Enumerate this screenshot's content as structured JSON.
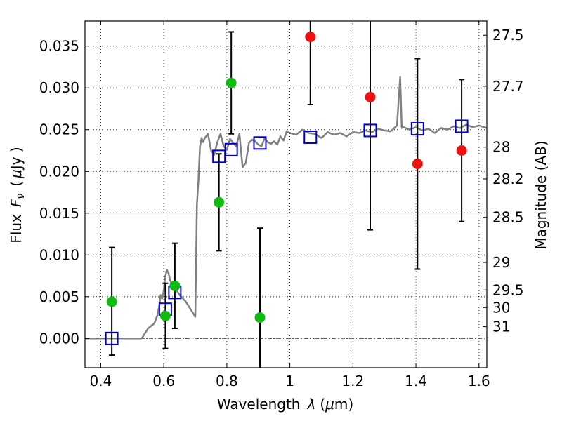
{
  "chart_data": {
    "type": "scatter",
    "title": "",
    "xlabel_text": "Wavelength",
    "xlabel_symbol": "λ",
    "xlabel_unit_open": "(",
    "xlabel_unit_mu": "μ",
    "xlabel_unit_rest": "m)",
    "ylabel_text": "Flux",
    "ylabel_symbol": "F",
    "ylabel_sub": "ν",
    "ylabel_unit_open": "(",
    "ylabel_unit_mu": "μ",
    "ylabel_unit_rest": "Jy )",
    "y2label": "Magnitude (AB)",
    "xlim": [
      0.35,
      1.625
    ],
    "ylim": [
      -0.0035,
      0.038
    ],
    "grid": true,
    "x_ticks": [
      0.4,
      0.6,
      0.8,
      1.0,
      1.2,
      1.4,
      1.6
    ],
    "x_tick_labels": [
      "0.4",
      "0.6",
      "0.8",
      "1",
      "1.2",
      "1.4",
      "1.6"
    ],
    "y_ticks": [
      0.0,
      0.005,
      0.01,
      0.015,
      0.02,
      0.025,
      0.03,
      0.035
    ],
    "y_tick_labels": [
      "0.000",
      "0.005",
      "0.010",
      "0.015",
      "0.020",
      "0.025",
      "0.030",
      "0.035"
    ],
    "mag_ticks": [
      {
        "label": "27.5",
        "flux": 0.0363
      },
      {
        "label": "27.7",
        "flux": 0.0302
      },
      {
        "label": "28",
        "flux": 0.0229
      },
      {
        "label": "28.2",
        "flux": 0.0191
      },
      {
        "label": "28.5",
        "flux": 0.0145
      },
      {
        "label": "29",
        "flux": 0.0091
      },
      {
        "label": "29.5",
        "flux": 0.0058
      },
      {
        "label": "30",
        "flux": 0.0037
      },
      {
        "label": "31",
        "flux": 0.0014
      }
    ],
    "colors": {
      "model": "#808080",
      "green": "#11bb11",
      "red": "#ee1111",
      "box": "#0000cc",
      "errorbar": "#000000"
    },
    "observed_green": [
      {
        "x": 0.435,
        "y": 0.0044,
        "err_lo": 0.0064,
        "err_hi": 0.0065
      },
      {
        "x": 0.605,
        "y": 0.0027,
        "err_lo": 0.0039,
        "err_hi": 0.0039
      },
      {
        "x": 0.635,
        "y": 0.0063,
        "err_lo": 0.0051,
        "err_hi": 0.0051
      },
      {
        "x": 0.775,
        "y": 0.0163,
        "err_lo": 0.0058,
        "err_hi": 0.0058
      },
      {
        "x": 0.814,
        "y": 0.0306,
        "err_lo": 0.0061,
        "err_hi": 0.0061
      },
      {
        "x": 0.905,
        "y": 0.0025,
        "err_lo": 0.0107,
        "err_hi": 0.0107
      }
    ],
    "observed_red": [
      {
        "x": 1.065,
        "y": 0.0361,
        "err_lo": 0.0081,
        "err_hi": 0.0081
      },
      {
        "x": 1.255,
        "y": 0.0289,
        "err_lo": 0.0159,
        "err_hi": 0.0159
      },
      {
        "x": 1.405,
        "y": 0.0209,
        "err_lo": 0.0126,
        "err_hi": 0.0126
      },
      {
        "x": 1.545,
        "y": 0.0225,
        "err_lo": 0.0085,
        "err_hi": 0.0085
      }
    ],
    "model_photometry": [
      {
        "x": 0.435,
        "y": 0.0
      },
      {
        "x": 0.605,
        "y": 0.0035
      },
      {
        "x": 0.635,
        "y": 0.0055
      },
      {
        "x": 0.775,
        "y": 0.0218
      },
      {
        "x": 0.814,
        "y": 0.0226
      },
      {
        "x": 0.905,
        "y": 0.0234
      },
      {
        "x": 1.065,
        "y": 0.0241
      },
      {
        "x": 1.255,
        "y": 0.0249
      },
      {
        "x": 1.405,
        "y": 0.0251
      },
      {
        "x": 1.545,
        "y": 0.0254
      }
    ],
    "model_spectrum": {
      "x": [
        0.35,
        0.4,
        0.45,
        0.5,
        0.53,
        0.55,
        0.57,
        0.58,
        0.585,
        0.59,
        0.595,
        0.6,
        0.605,
        0.61,
        0.615,
        0.62,
        0.63,
        0.64,
        0.65,
        0.66,
        0.67,
        0.68,
        0.69,
        0.7,
        0.705,
        0.71,
        0.715,
        0.72,
        0.725,
        0.73,
        0.74,
        0.75,
        0.76,
        0.77,
        0.78,
        0.79,
        0.8,
        0.81,
        0.82,
        0.83,
        0.84,
        0.85,
        0.86,
        0.87,
        0.88,
        0.89,
        0.9,
        0.91,
        0.92,
        0.93,
        0.94,
        0.95,
        0.96,
        0.97,
        0.98,
        0.99,
        1.0,
        1.02,
        1.04,
        1.06,
        1.08,
        1.1,
        1.12,
        1.14,
        1.16,
        1.18,
        1.2,
        1.22,
        1.24,
        1.26,
        1.28,
        1.3,
        1.32,
        1.34,
        1.35,
        1.355,
        1.36,
        1.38,
        1.4,
        1.42,
        1.44,
        1.46,
        1.48,
        1.5,
        1.52,
        1.54,
        1.56,
        1.58,
        1.6,
        1.625
      ],
      "y": [
        0.0,
        0.0,
        0.0,
        0.0,
        0.0,
        0.0012,
        0.0018,
        0.0028,
        0.0038,
        0.0052,
        0.0048,
        0.0058,
        0.0075,
        0.0082,
        0.0078,
        0.007,
        0.006,
        0.0058,
        0.0052,
        0.0048,
        0.0044,
        0.0038,
        0.0032,
        0.0026,
        0.016,
        0.019,
        0.023,
        0.024,
        0.0235,
        0.024,
        0.0245,
        0.0225,
        0.022,
        0.0235,
        0.0245,
        0.023,
        0.0226,
        0.0239,
        0.0234,
        0.023,
        0.0245,
        0.0205,
        0.021,
        0.0234,
        0.0238,
        0.0236,
        0.0232,
        0.023,
        0.024,
        0.0235,
        0.0233,
        0.0236,
        0.0232,
        0.0242,
        0.0237,
        0.0248,
        0.0246,
        0.0244,
        0.025,
        0.0246,
        0.0245,
        0.024,
        0.0247,
        0.0244,
        0.0246,
        0.0242,
        0.0247,
        0.0246,
        0.0249,
        0.0247,
        0.0251,
        0.0249,
        0.0248,
        0.0255,
        0.0313,
        0.0252,
        0.0253,
        0.025,
        0.0253,
        0.0249,
        0.0251,
        0.0246,
        0.0252,
        0.025,
        0.0254,
        0.0252,
        0.0256,
        0.0253,
        0.0255,
        0.0252
      ]
    }
  }
}
